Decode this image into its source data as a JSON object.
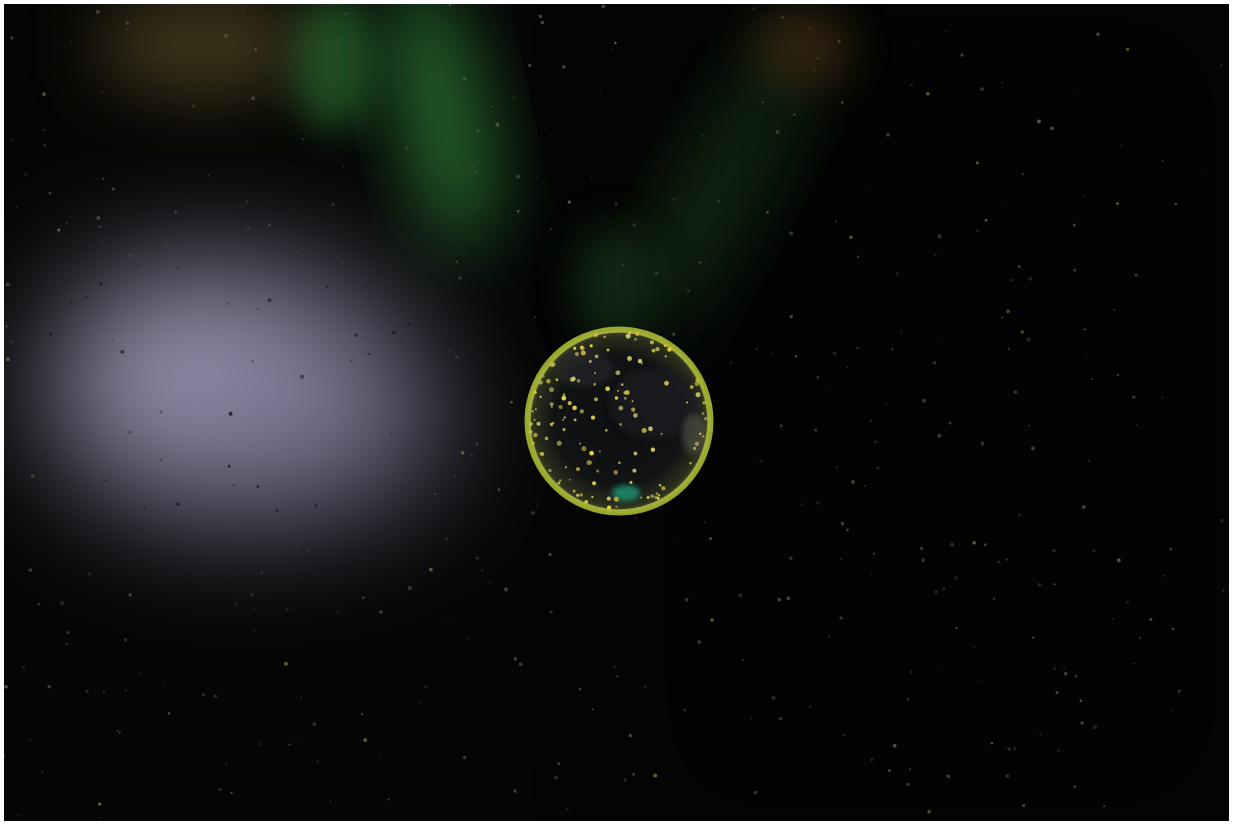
{
  "image": {
    "subject": "bubble",
    "palette": {
      "background": "#050505",
      "haze": "#9d9ab8",
      "glow_green": "#2f8a3a",
      "glow_orange": "#8a5a22",
      "rim": "#b9c93a"
    }
  }
}
